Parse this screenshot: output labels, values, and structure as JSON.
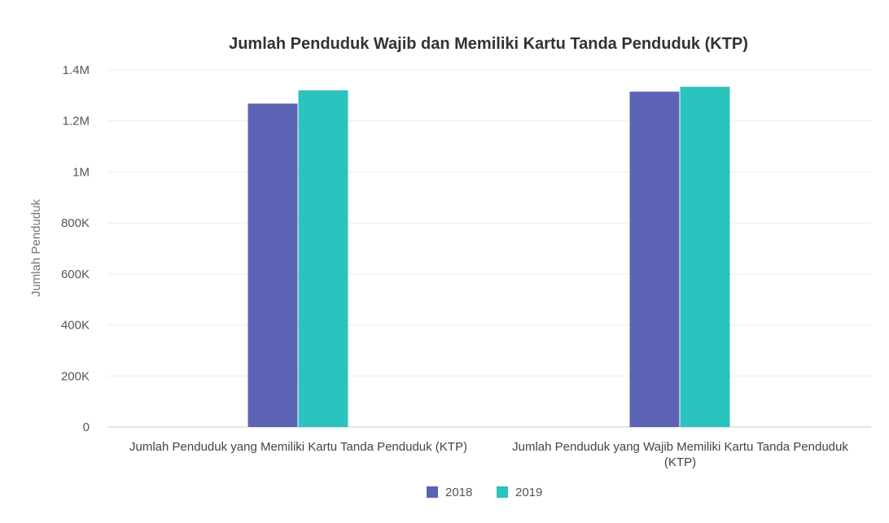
{
  "chart_data": {
    "type": "bar",
    "title": "Jumlah Penduduk Wajib dan Memiliki Kartu Tanda Penduduk (KTP)",
    "xlabel": "",
    "ylabel": "Jumlah Penduduk",
    "categories": [
      "Jumlah Penduduk yang Memiliki Kartu Tanda Penduduk (KTP)",
      "Jumlah Penduduk yang Wajib Memiliki Kartu Tanda Penduduk (KTP)"
    ],
    "category_label_lines": [
      [
        "Jumlah Penduduk yang Memiliki Kartu Tanda Penduduk (KTP)"
      ],
      [
        "Jumlah Penduduk yang Wajib Memiliki Kartu Tanda Penduduk",
        "(KTP)"
      ]
    ],
    "series": [
      {
        "name": "2018",
        "color": "#5c63b5",
        "values": [
          1268000,
          1315000
        ]
      },
      {
        "name": "2019",
        "color": "#2ac3bd",
        "values": [
          1320000,
          1334000
        ]
      }
    ],
    "ylim": [
      0,
      1400000
    ],
    "yticks": [
      0,
      200000,
      400000,
      600000,
      800000,
      1000000,
      1200000,
      1400000
    ],
    "ytick_labels": [
      "0",
      "200K",
      "400K",
      "600K",
      "800K",
      "1M",
      "1.2M",
      "1.4M"
    ],
    "grid": true,
    "legend_position": "bottom-center"
  }
}
